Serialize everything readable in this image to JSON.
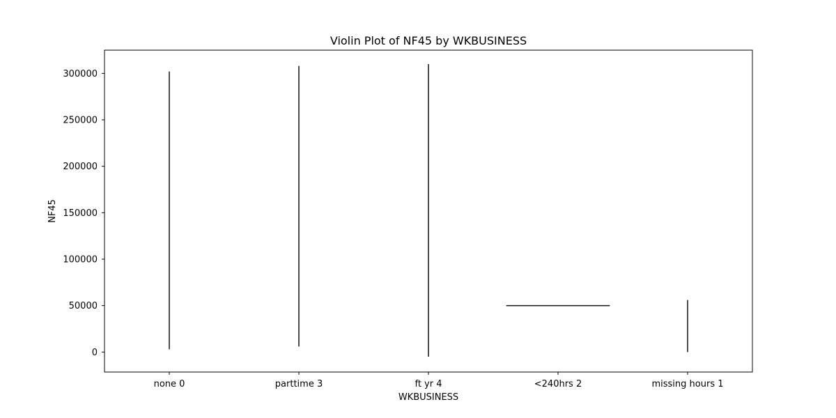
{
  "chart_data": {
    "type": "violin",
    "title": "Violin Plot of NF45 by WKBUSINESS",
    "xlabel": "WKBUSINESS",
    "ylabel": "NF45",
    "categories": [
      "none 0",
      "parttime 3",
      "ft yr 4",
      "<240hrs 2",
      "missing hours 1"
    ],
    "ylim": [
      -21500,
      325000
    ],
    "yticks": [
      0,
      50000,
      100000,
      150000,
      200000,
      250000,
      300000
    ],
    "ytick_labels": [
      "0",
      "50000",
      "100000",
      "150000",
      "200000",
      "250000",
      "300000"
    ],
    "violins": [
      {
        "category": "none 0",
        "min": 3000,
        "max": 302000
      },
      {
        "category": "parttime 3",
        "min": 6000,
        "max": 308000
      },
      {
        "category": "ft yr 4",
        "min": -5000,
        "max": 310000
      },
      {
        "category": "<240hrs 2",
        "min": 50000,
        "max": 50000
      },
      {
        "category": "missing hours 1",
        "min": 0,
        "max": 56000
      }
    ],
    "grid": false,
    "colors": {
      "line": "#222222",
      "frame": "#000000"
    }
  }
}
